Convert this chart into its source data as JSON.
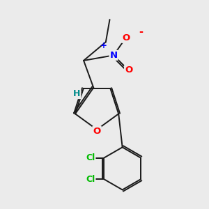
{
  "background_color": "#ebebeb",
  "bond_color": "#1a1a1a",
  "atom_colors": {
    "O": "#ff0000",
    "N": "#0000ff",
    "Cl": "#00bb00",
    "H": "#008b8b",
    "C": "#1a1a1a"
  },
  "font_size": 9.5,
  "bond_width": 1.4,
  "dbo": 0.018
}
